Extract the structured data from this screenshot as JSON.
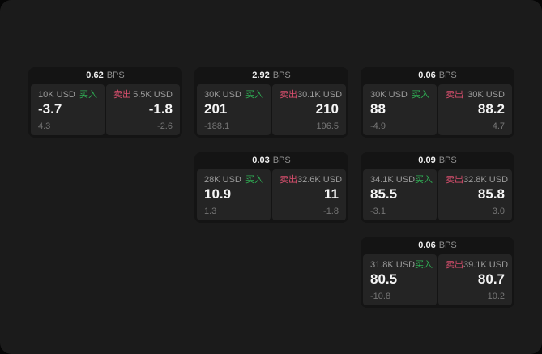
{
  "labels": {
    "bps_unit": "BPS",
    "buy_label": "买入",
    "sell_label": "卖出"
  },
  "colors": {
    "window_bg": "#1b1b1b",
    "card_bg": "#141414",
    "panel_bg": "#242424",
    "buy_green": "#2fae54",
    "sell_red": "#d94f6e"
  },
  "cards": [
    {
      "row": 1,
      "col": 1,
      "bps": "0.62",
      "buy": {
        "amount": "10K USD",
        "value": "-3.7",
        "delta": "4.3"
      },
      "sell": {
        "amount": "5.5K USD",
        "value": "-1.8",
        "delta": "-2.6"
      }
    },
    {
      "row": 1,
      "col": 2,
      "bps": "2.92",
      "buy": {
        "amount": "30K USD",
        "value": "201",
        "delta": "-188.1"
      },
      "sell": {
        "amount": "30.1K USD",
        "value": "210",
        "delta": "196.5"
      }
    },
    {
      "row": 1,
      "col": 3,
      "bps": "0.06",
      "buy": {
        "amount": "30K USD",
        "value": "88",
        "delta": "-4.9"
      },
      "sell": {
        "amount": "30K USD",
        "value": "88.2",
        "delta": "4.7"
      }
    },
    {
      "row": 2,
      "col": 2,
      "bps": "0.03",
      "buy": {
        "amount": "28K USD",
        "value": "10.9",
        "delta": "1.3"
      },
      "sell": {
        "amount": "32.6K USD",
        "value": "11",
        "delta": "-1.8"
      }
    },
    {
      "row": 2,
      "col": 3,
      "bps": "0.09",
      "buy": {
        "amount": "34.1K USD",
        "value": "85.5",
        "delta": "-3.1"
      },
      "sell": {
        "amount": "32.8K USD",
        "value": "85.8",
        "delta": "3.0"
      }
    },
    {
      "row": 3,
      "col": 3,
      "bps": "0.06",
      "buy": {
        "amount": "31.8K USD",
        "value": "80.5",
        "delta": "-10.8"
      },
      "sell": {
        "amount": "39.1K USD",
        "value": "80.7",
        "delta": "10.2"
      }
    }
  ]
}
